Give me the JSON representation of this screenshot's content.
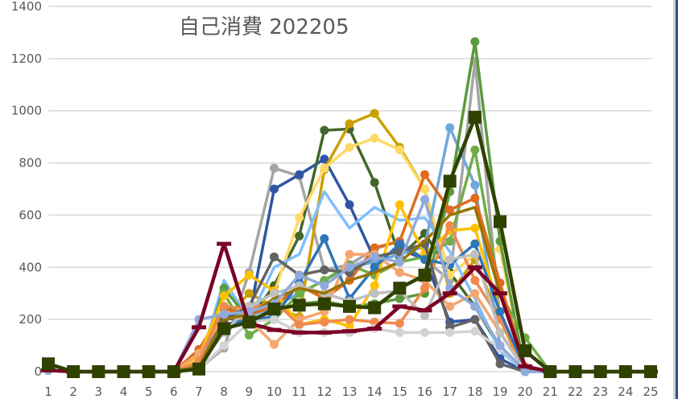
{
  "chart_data": {
    "type": "line",
    "title": "自己消費 202205",
    "xlabel": "",
    "ylabel": "",
    "ylim": [
      0,
      1400
    ],
    "yticks": [
      0,
      200,
      400,
      600,
      800,
      1000,
      1200,
      1400
    ],
    "grid": true,
    "legend": "none",
    "x": [
      1,
      2,
      3,
      4,
      5,
      6,
      7,
      8,
      9,
      10,
      11,
      12,
      13,
      14,
      15,
      16,
      17,
      18,
      19,
      20,
      21,
      22,
      23,
      24,
      25
    ],
    "series": [
      {
        "name": "s01",
        "color": "#a5a5a5",
        "marker": "circle",
        "values": [
          5,
          0,
          0,
          0,
          0,
          0,
          10,
          90,
          380,
          780,
          750,
          390,
          410,
          470,
          500,
          430,
          350,
          1190,
          200,
          0,
          0,
          0,
          0,
          0,
          0
        ]
      },
      {
        "name": "s02",
        "color": "#2f55a4",
        "marker": "circle",
        "values": [
          5,
          0,
          0,
          0,
          0,
          0,
          15,
          200,
          210,
          700,
          755,
          815,
          640,
          430,
          470,
          430,
          190,
          200,
          50,
          0,
          0,
          0,
          0,
          0,
          0
        ]
      },
      {
        "name": "s03",
        "color": "#43682b",
        "marker": "circle",
        "values": [
          5,
          0,
          0,
          0,
          0,
          0,
          20,
          250,
          200,
          330,
          520,
          925,
          930,
          725,
          440,
          530,
          380,
          250,
          90,
          0,
          0,
          0,
          0,
          0,
          0
        ]
      },
      {
        "name": "s04",
        "color": "#c9a000",
        "marker": "circle",
        "values": [
          5,
          0,
          0,
          0,
          0,
          0,
          30,
          200,
          300,
          250,
          210,
          775,
          950,
          990,
          860,
          700,
          300,
          430,
          200,
          0,
          0,
          0,
          0,
          0,
          0
        ]
      },
      {
        "name": "s05",
        "color": "#ffd966",
        "marker": "circle",
        "values": [
          5,
          0,
          0,
          0,
          0,
          0,
          40,
          300,
          250,
          300,
          590,
          780,
          860,
          895,
          850,
          700,
          370,
          450,
          470,
          0,
          0,
          0,
          0,
          0,
          0
        ]
      },
      {
        "name": "s06",
        "color": "#7fbfff",
        "marker": "none",
        "values": [
          5,
          0,
          0,
          0,
          0,
          0,
          20,
          350,
          200,
          400,
          450,
          690,
          550,
          630,
          580,
          590,
          460,
          280,
          80,
          0,
          0,
          0,
          0,
          0,
          0
        ]
      },
      {
        "name": "s07",
        "color": "#70a7dc",
        "marker": "circle",
        "values": [
          5,
          0,
          0,
          0,
          0,
          0,
          15,
          220,
          210,
          250,
          300,
          350,
          400,
          420,
          450,
          480,
          935,
          715,
          100,
          0,
          0,
          0,
          0,
          0,
          0
        ]
      },
      {
        "name": "s08",
        "color": "#5b9a3c",
        "marker": "circle",
        "values": [
          5,
          0,
          0,
          0,
          0,
          0,
          20,
          320,
          200,
          230,
          260,
          270,
          250,
          260,
          280,
          300,
          690,
          1265,
          500,
          0,
          0,
          0,
          0,
          0,
          0
        ]
      },
      {
        "name": "s09",
        "color": "#70ad47",
        "marker": "circle",
        "values": [
          5,
          0,
          0,
          0,
          0,
          0,
          25,
          300,
          140,
          200,
          300,
          350,
          410,
          370,
          420,
          440,
          500,
          850,
          300,
          130,
          0,
          0,
          0,
          0,
          0
        ]
      },
      {
        "name": "s10",
        "color": "#dd6c1e",
        "marker": "circle",
        "values": [
          5,
          0,
          0,
          0,
          0,
          0,
          85,
          240,
          220,
          250,
          330,
          280,
          350,
          475,
          500,
          755,
          620,
          665,
          340,
          20,
          0,
          0,
          0,
          0,
          0
        ]
      },
      {
        "name": "s11",
        "color": "#ffc000",
        "marker": "circle",
        "values": [
          5,
          0,
          0,
          0,
          0,
          0,
          60,
          290,
          370,
          310,
          180,
          200,
          175,
          330,
          640,
          450,
          540,
          550,
          230,
          10,
          0,
          0,
          0,
          0,
          0
        ]
      },
      {
        "name": "s12",
        "color": "#f4a66f",
        "marker": "circle",
        "values": [
          5,
          0,
          0,
          0,
          0,
          0,
          70,
          210,
          200,
          105,
          200,
          230,
          450,
          450,
          380,
          350,
          250,
          300,
          150,
          15,
          0,
          0,
          0,
          0,
          0
        ]
      },
      {
        "name": "s13",
        "color": "#f08a4e",
        "marker": "circle",
        "values": [
          5,
          0,
          0,
          0,
          0,
          0,
          40,
          250,
          240,
          270,
          180,
          190,
          200,
          190,
          185,
          320,
          560,
          350,
          200,
          20,
          0,
          0,
          0,
          0,
          0
        ]
      },
      {
        "name": "s14",
        "color": "#2e75b6",
        "marker": "circle",
        "values": [
          5,
          0,
          0,
          0,
          0,
          0,
          20,
          180,
          200,
          210,
          340,
          510,
          280,
          400,
          490,
          430,
          410,
          490,
          230,
          10,
          0,
          0,
          0,
          0,
          0
        ]
      },
      {
        "name": "s15",
        "color": "#636363",
        "marker": "circle",
        "values": [
          5,
          0,
          0,
          0,
          0,
          0,
          20,
          200,
          250,
          440,
          370,
          390,
          380,
          440,
          460,
          490,
          170,
          200,
          30,
          0,
          0,
          0,
          0,
          0,
          0
        ]
      },
      {
        "name": "s16",
        "color": "#bfbfbf",
        "marker": "circle",
        "values": [
          5,
          0,
          0,
          0,
          0,
          0,
          20,
          150,
          250,
          300,
          330,
          300,
          270,
          300,
          310,
          215,
          430,
          450,
          150,
          0,
          0,
          0,
          0,
          0,
          0
        ]
      },
      {
        "name": "s17",
        "color": "#d3d3d3",
        "marker": "circle",
        "values": [
          5,
          0,
          0,
          0,
          0,
          0,
          10,
          100,
          190,
          200,
          150,
          150,
          150,
          165,
          150,
          150,
          150,
          155,
          90,
          0,
          0,
          0,
          0,
          0,
          0
        ]
      },
      {
        "name": "s18",
        "color": "#997300",
        "marker": "none",
        "values": [
          5,
          0,
          0,
          0,
          0,
          0,
          20,
          200,
          220,
          280,
          320,
          300,
          350,
          380,
          420,
          500,
          600,
          630,
          300,
          10,
          0,
          0,
          0,
          0,
          0
        ]
      },
      {
        "name": "s19",
        "color": "#8faadc",
        "marker": "circle",
        "values": [
          5,
          0,
          0,
          0,
          0,
          0,
          200,
          220,
          230,
          260,
          370,
          330,
          400,
          440,
          420,
          660,
          320,
          250,
          100,
          0,
          0,
          0,
          0,
          0,
          0
        ]
      },
      {
        "name": "s20",
        "color": "#7b0026",
        "marker": "dash",
        "values": [
          5,
          0,
          0,
          0,
          0,
          0,
          170,
          490,
          185,
          160,
          150,
          150,
          155,
          165,
          250,
          235,
          300,
          400,
          300,
          20,
          0,
          0,
          0,
          0,
          0
        ]
      },
      {
        "name": "s21",
        "color": "#2f4200",
        "marker": "square",
        "values": [
          30,
          0,
          0,
          0,
          0,
          0,
          10,
          165,
          190,
          240,
          255,
          260,
          250,
          245,
          320,
          370,
          730,
          975,
          575,
          80,
          0,
          0,
          0,
          0,
          0
        ]
      }
    ]
  },
  "ui": {
    "title": "自己消費 202205"
  }
}
